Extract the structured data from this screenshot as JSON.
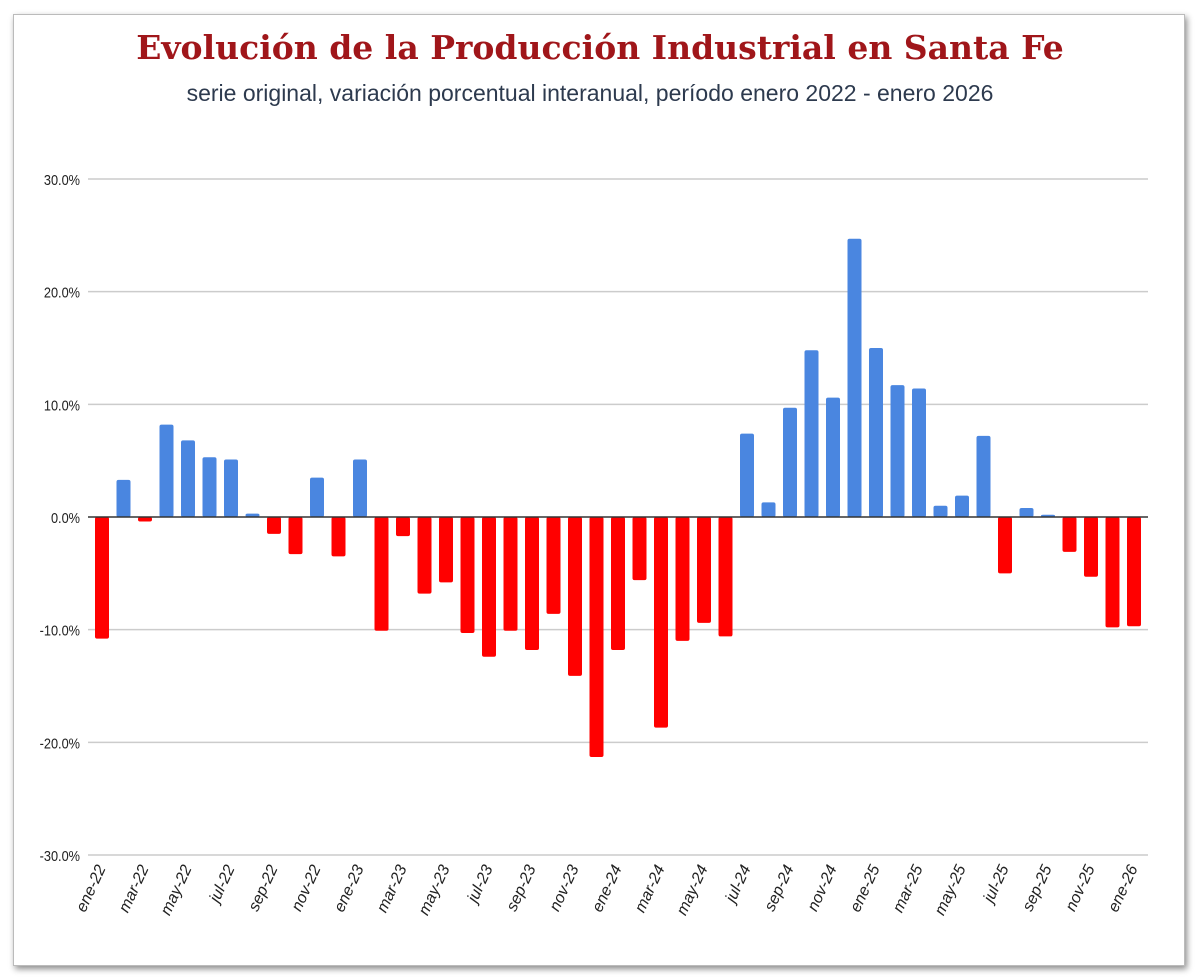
{
  "chart_data": {
    "type": "bar",
    "title": "Evolución de la Producción Industrial en Santa Fe",
    "subtitle": "serie original, variación porcentual interanual, período enero 2022 - enero 2026",
    "xlabel": "",
    "ylabel": "",
    "ylim": [
      -30,
      30
    ],
    "yticks": [
      "30.0%",
      "20.0%",
      "10.0%",
      "0.0%",
      "-10.0%",
      "-20.0%",
      "-30.0%"
    ],
    "ytick_values": [
      30,
      20,
      10,
      0,
      -10,
      -20,
      -30
    ],
    "grid": true,
    "colors": {
      "positive": "#4a86e0",
      "negative": "#ff0000",
      "title": "#a0161a",
      "subtitle": "#2d3a4e"
    },
    "categories": [
      "ene-22",
      "feb-22",
      "mar-22",
      "abr-22",
      "may-22",
      "jun-22",
      "jul-22",
      "ago-22",
      "sep-22",
      "oct-22",
      "nov-22",
      "dic-22",
      "ene-23",
      "feb-23",
      "mar-23",
      "abr-23",
      "may-23",
      "jun-23",
      "jul-23",
      "ago-23",
      "sep-23",
      "oct-23",
      "nov-23",
      "dic-23",
      "ene-24",
      "feb-24",
      "mar-24",
      "abr-24",
      "may-24",
      "jun-24",
      "jul-24",
      "ago-24",
      "sep-24",
      "oct-24",
      "nov-24",
      "dic-24",
      "ene-25",
      "feb-25",
      "mar-25",
      "abr-25",
      "may-25",
      "jun-25",
      "jul-25",
      "ago-25",
      "sep-25",
      "oct-25",
      "nov-25",
      "dic-25",
      "ene-26"
    ],
    "xtick_labels": [
      "ene-22",
      "mar-22",
      "may-22",
      "jul-22",
      "sep-22",
      "nov-22",
      "ene-23",
      "mar-23",
      "may-23",
      "jul-23",
      "sep-23",
      "nov-23",
      "ene-24",
      "mar-24",
      "may-24",
      "jul-24",
      "sep-24",
      "nov-24",
      "ene-25",
      "mar-25",
      "may-25",
      "jul-25",
      "sep-25",
      "nov-25",
      "ene-26"
    ],
    "values": [
      -10.8,
      3.3,
      -0.4,
      8.2,
      6.8,
      5.3,
      5.1,
      0.3,
      -1.5,
      -3.3,
      3.5,
      -3.5,
      5.1,
      -10.1,
      -1.7,
      -6.8,
      -5.8,
      -10.3,
      -12.4,
      -10.1,
      -11.8,
      -8.6,
      -14.1,
      -21.3,
      -11.8,
      -5.6,
      -18.7,
      -11.0,
      -9.4,
      -10.6,
      7.4,
      1.3,
      9.7,
      14.8,
      10.6,
      24.7,
      15.0,
      11.7,
      11.4,
      1.0,
      1.9,
      7.2,
      -5.0,
      0.8,
      0.2,
      -3.1,
      -5.3,
      -9.8,
      -9.7
    ]
  }
}
